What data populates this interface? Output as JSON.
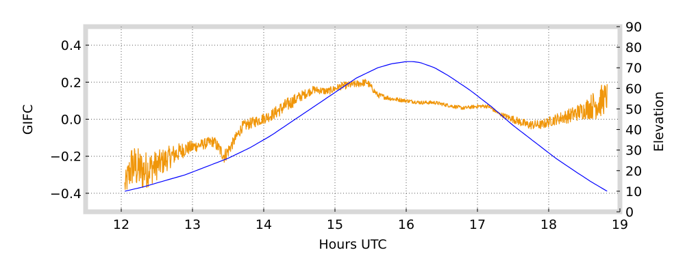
{
  "chart_data": {
    "type": "line",
    "xlabel": "Hours UTC",
    "ylabel_left": "GIFC",
    "ylabel_right": "Elevation",
    "xlim": [
      11.5,
      19
    ],
    "ylim_left": [
      -0.5,
      0.5
    ],
    "ylim_right": [
      0,
      90
    ],
    "x_ticks": [
      12,
      13,
      14,
      15,
      16,
      17,
      18,
      19
    ],
    "x_tick_labels": [
      "12",
      "13",
      "14",
      "15",
      "16",
      "17",
      "18",
      "19"
    ],
    "y_left_ticks": [
      -0.4,
      -0.2,
      0.0,
      0.2,
      0.4
    ],
    "y_left_tick_labels": [
      "−0.4",
      "−0.2",
      "0.0",
      "0.2",
      "0.4"
    ],
    "y_right_ticks": [
      0,
      10,
      20,
      30,
      40,
      50,
      60,
      70,
      80,
      90
    ],
    "y_right_tick_labels": [
      "0",
      "10",
      "20",
      "30",
      "40",
      "50",
      "60",
      "70",
      "80",
      "90"
    ],
    "grid": true,
    "series": [
      {
        "axis": "left",
        "color": "#f0960a",
        "x": [
          12.05,
          12.15,
          12.3,
          12.5,
          12.7,
          12.9,
          13.1,
          13.3,
          13.45,
          13.55,
          13.7,
          13.9,
          14.1,
          14.3,
          14.5,
          14.7,
          14.9,
          15.1,
          15.3,
          15.45,
          15.6,
          15.8,
          16.0,
          16.2,
          16.4,
          16.65,
          16.8,
          17.0,
          17.15,
          17.3,
          17.5,
          17.7,
          17.9,
          18.1,
          18.3,
          18.5,
          18.7,
          18.82
        ],
        "y": [
          -0.36,
          -0.25,
          -0.28,
          -0.25,
          -0.2,
          -0.16,
          -0.14,
          -0.12,
          -0.2,
          -0.14,
          -0.04,
          -0.01,
          0.02,
          0.07,
          0.12,
          0.16,
          0.15,
          0.18,
          0.19,
          0.2,
          0.13,
          0.11,
          0.1,
          0.09,
          0.09,
          0.07,
          0.06,
          0.07,
          0.07,
          0.03,
          0.0,
          -0.03,
          -0.03,
          0.0,
          0.02,
          0.05,
          0.09,
          0.12
        ],
        "noise_amplitude": [
          0.06,
          0.12,
          0.11,
          0.08,
          0.06,
          0.04,
          0.03,
          0.03,
          0.04,
          0.03,
          0.03,
          0.03,
          0.03,
          0.04,
          0.03,
          0.02,
          0.02,
          0.02,
          0.02,
          0.02,
          0.015,
          0.012,
          0.01,
          0.01,
          0.01,
          0.01,
          0.01,
          0.01,
          0.01,
          0.01,
          0.02,
          0.025,
          0.025,
          0.03,
          0.04,
          0.05,
          0.09,
          0.08
        ]
      },
      {
        "axis": "right",
        "color": "#0000ff",
        "x": [
          12.05,
          12.3,
          12.6,
          12.9,
          13.2,
          13.5,
          13.8,
          14.1,
          14.4,
          14.7,
          15.0,
          15.3,
          15.6,
          15.8,
          16.0,
          16.1,
          16.2,
          16.4,
          16.6,
          16.9,
          17.2,
          17.5,
          17.8,
          18.1,
          18.4,
          18.6,
          18.82
        ],
        "y": [
          10,
          12,
          15,
          18,
          22,
          26,
          31,
          37,
          44,
          51,
          58,
          65,
          70,
          72,
          73,
          73,
          72.5,
          70,
          66,
          59,
          51,
          42,
          34,
          26,
          19,
          14.5,
          10
        ]
      }
    ]
  }
}
